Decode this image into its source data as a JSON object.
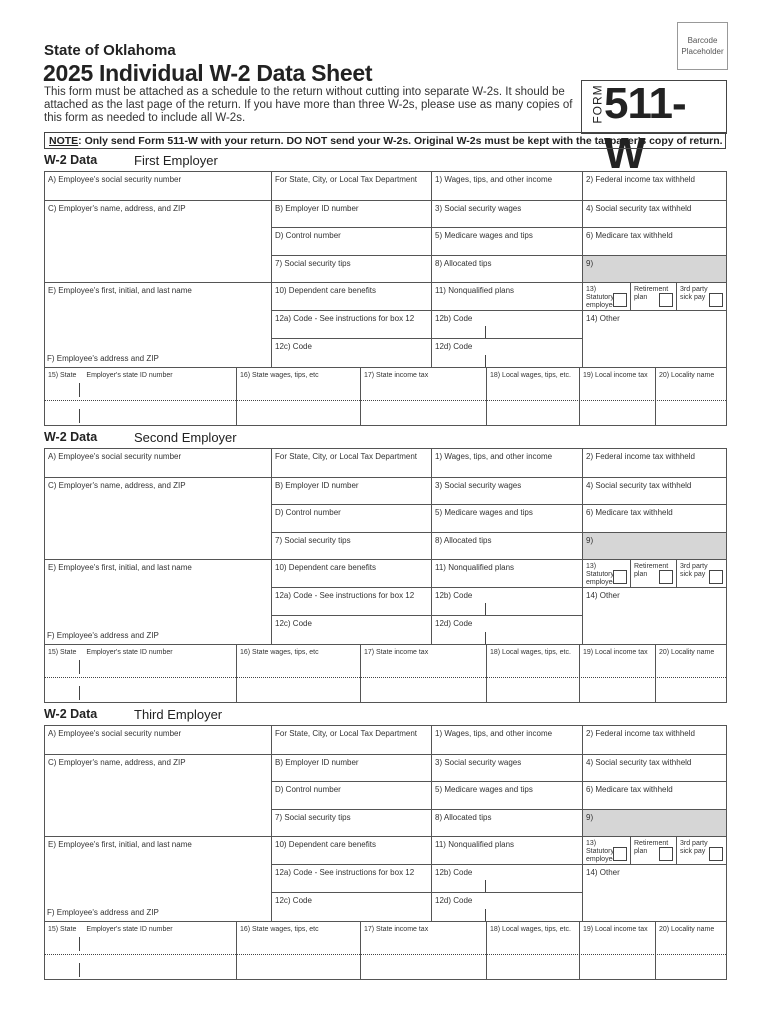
{
  "header": {
    "barcode_line1": "Barcode",
    "barcode_line2": "Placeholder",
    "state": "State of Oklahoma",
    "title": "2025 Individual W-2 Data Sheet",
    "intro": "This form must be attached as a schedule to the return without cutting into separate W-2s. It should be attached as the last page of the return. If you have more than three W-2s, please use as many copies of this form as needed to include all W-2s.",
    "form_word": "FORM",
    "form_number": "511-W",
    "note_label": "NOTE",
    "note_text": ": Only send Form 511-W with your return. DO NOT send your W-2s. Original W-2s must be kept with the taxpayer's copy of return."
  },
  "section_label": "W-2 Data",
  "employers": [
    "First Employer",
    "Second Employer",
    "Third Employer"
  ],
  "fields": {
    "a": "A) Employee's social security number",
    "dept": "For State, City, or Local Tax Department",
    "b1": "1) Wages, tips, and other income",
    "b2": "2) Federal income tax withheld",
    "c": "C) Employer's name, address, and ZIP",
    "b": "B) Employer ID number",
    "b3": "3) Social security wages",
    "b4": "4) Social security tax withheld",
    "d": "D) Control number",
    "b5": "5) Medicare wages and tips",
    "b6": "6) Medicare tax withheld",
    "b7": "7) Social security tips",
    "b8": "8) Allocated tips",
    "b9": "9)",
    "e": "E) Employee's first, initial, and last name",
    "b10": "10) Dependent care benefits",
    "b11": "11) Nonqualified plans",
    "b13a": "13) Statutory employee",
    "b13b": "Retirement plan",
    "b13c": "3rd party sick pay",
    "b12a": "12a) Code - See instructions for box 12",
    "b12b": "12b) Code",
    "b14": "14) Other",
    "b12c": "12c) Code",
    "b12d": "12d) Code",
    "f": "F) Employee's address and ZIP",
    "b15": "15) State",
    "stateid": "Employer's state ID number",
    "b16": "16) State wages, tips, etc",
    "b17": "17) State income tax",
    "b18": "18) Local wages, tips, etc.",
    "b19": "19) Local income tax",
    "b20": "20) Locality name"
  },
  "colors": {
    "shaded_box": "#d6d6d6",
    "border": "#555555"
  }
}
